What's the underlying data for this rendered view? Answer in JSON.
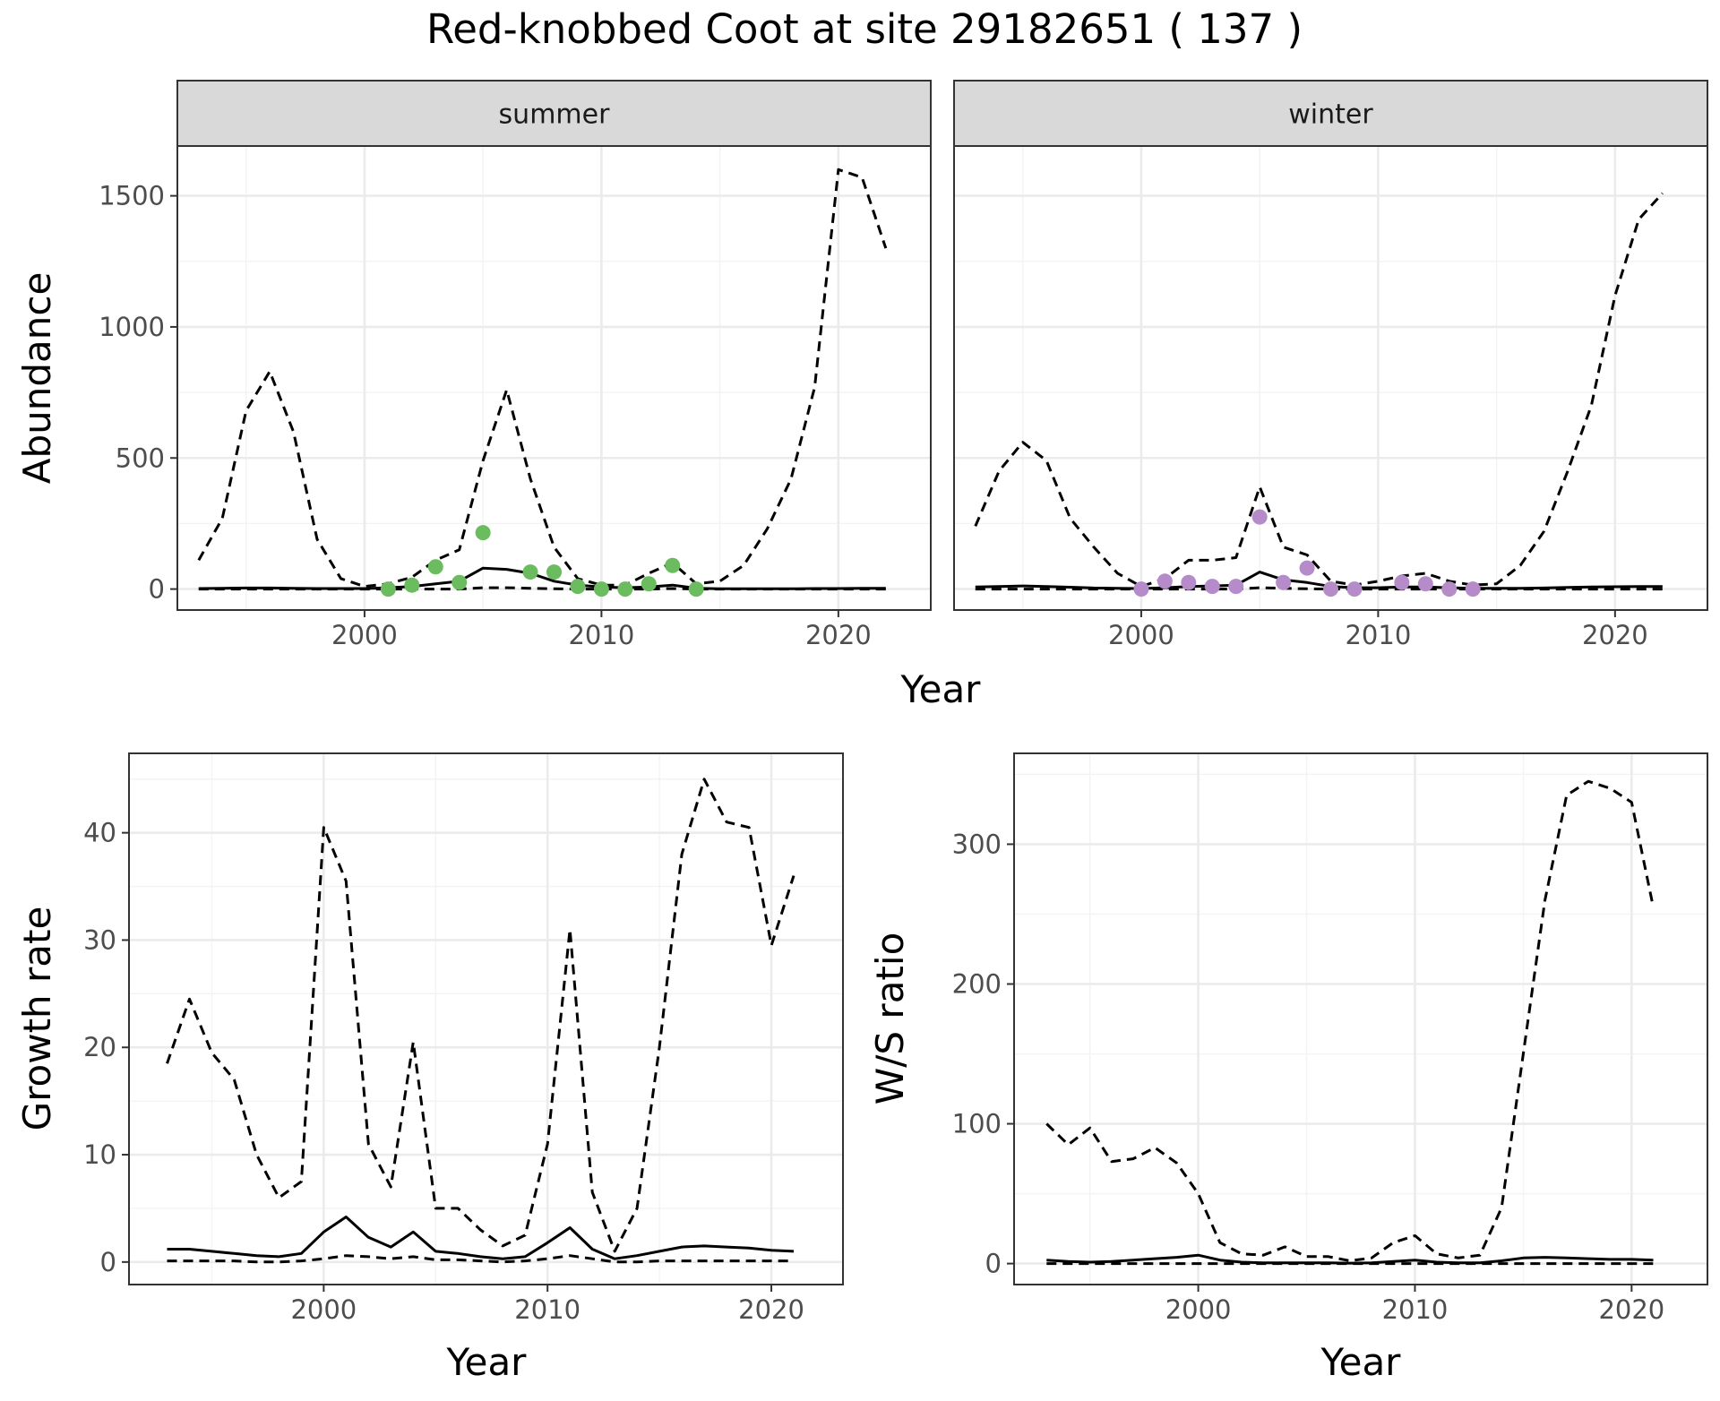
{
  "title": "Red-knobbed Coot at site 29182651 ( 137 )",
  "colors": {
    "summer_points": "#6abc5e",
    "winter_points": "#b58bc9",
    "line": "#000000",
    "grid_major": "#ebebeb",
    "grid_minor": "#f3f3f3",
    "strip_fill": "#d9d9d9"
  },
  "chart_data": [
    {
      "type": "line",
      "panel": "abundance",
      "facet_labels": [
        "summer",
        "winter"
      ],
      "xlabel": "Year",
      "ylabel": "Abundance",
      "xlim": [
        1992.1,
        2023.9
      ],
      "ylim": [
        -80,
        1690
      ],
      "x_ticks": [
        2000,
        2010,
        2020
      ],
      "y_ticks": [
        0,
        500,
        1000,
        1500
      ],
      "facets": [
        {
          "label": "summer",
          "x": [
            1993,
            1994,
            1995,
            1996,
            1997,
            1998,
            1999,
            2000,
            2001,
            2002,
            2003,
            2004,
            2005,
            2006,
            2007,
            2008,
            2009,
            2010,
            2011,
            2012,
            2013,
            2014,
            2015,
            2016,
            2017,
            2018,
            2019,
            2020,
            2021,
            2022
          ],
          "lower": [
            0,
            0,
            0,
            0,
            0,
            0,
            0,
            0,
            0,
            0,
            0,
            0,
            5,
            5,
            3,
            1,
            0,
            0,
            0,
            0,
            2,
            0,
            0,
            0,
            0,
            0,
            0,
            0,
            0,
            0
          ],
          "mean": [
            2,
            3,
            4,
            4,
            3,
            2,
            2,
            2,
            5,
            10,
            20,
            30,
            80,
            75,
            60,
            30,
            15,
            8,
            5,
            8,
            15,
            3,
            1,
            1,
            1,
            1,
            2,
            2,
            3,
            3
          ],
          "upper": [
            110,
            270,
            680,
            830,
            600,
            190,
            40,
            10,
            20,
            45,
            110,
            150,
            490,
            760,
            420,
            160,
            40,
            15,
            15,
            60,
            100,
            20,
            30,
            90,
            230,
            420,
            770,
            1600,
            1570,
            1300
          ],
          "obs_x": [
            2001,
            2002,
            2003,
            2004,
            2005,
            2007,
            2008,
            2009,
            2010,
            2011,
            2012,
            2013,
            2014
          ],
          "obs_y": [
            0,
            15,
            85,
            25,
            215,
            65,
            65,
            10,
            0,
            0,
            20,
            90,
            0
          ]
        },
        {
          "label": "winter",
          "x": [
            1993,
            1994,
            1995,
            1996,
            1997,
            1998,
            1999,
            2000,
            2001,
            2002,
            2003,
            2004,
            2005,
            2006,
            2007,
            2008,
            2009,
            2010,
            2011,
            2012,
            2013,
            2014,
            2015,
            2016,
            2017,
            2018,
            2019,
            2020,
            2021,
            2022
          ],
          "lower": [
            0,
            0,
            0,
            0,
            0,
            0,
            0,
            0,
            0,
            0,
            0,
            0,
            5,
            3,
            1,
            0,
            0,
            0,
            0,
            0,
            0,
            0,
            0,
            0,
            0,
            0,
            0,
            0,
            0,
            0
          ],
          "mean": [
            8,
            10,
            12,
            10,
            7,
            4,
            3,
            2,
            5,
            10,
            12,
            15,
            65,
            35,
            25,
            10,
            5,
            5,
            8,
            8,
            5,
            3,
            3,
            3,
            4,
            6,
            8,
            9,
            10,
            10
          ],
          "upper": [
            240,
            450,
            560,
            490,
            270,
            160,
            60,
            10,
            40,
            110,
            110,
            120,
            390,
            160,
            130,
            30,
            15,
            30,
            50,
            60,
            30,
            15,
            20,
            90,
            220,
            450,
            700,
            1120,
            1410,
            1510
          ],
          "obs_x": [
            2000,
            2001,
            2002,
            2003,
            2004,
            2005,
            2006,
            2007,
            2008,
            2009,
            2011,
            2012,
            2013,
            2014
          ],
          "obs_y": [
            0,
            30,
            25,
            10,
            10,
            275,
            25,
            80,
            0,
            0,
            25,
            20,
            0,
            0
          ]
        }
      ]
    },
    {
      "type": "line",
      "panel": "growth",
      "xlabel": "Year",
      "ylabel": "Growth rate",
      "xlim": [
        1991.3,
        2023.2
      ],
      "ylim": [
        -2.1,
        47.4
      ],
      "x_ticks": [
        2000,
        2010,
        2020
      ],
      "y_ticks": [
        0,
        10,
        20,
        30,
        40
      ],
      "x": [
        1993,
        1994,
        1995,
        1996,
        1997,
        1998,
        1999,
        2000,
        2001,
        2002,
        2003,
        2004,
        2005,
        2006,
        2007,
        2008,
        2009,
        2010,
        2011,
        2012,
        2013,
        2014,
        2015,
        2016,
        2017,
        2018,
        2019,
        2020,
        2021
      ],
      "lower": [
        0.1,
        0.1,
        0.1,
        0.1,
        0.0,
        0.0,
        0.1,
        0.3,
        0.6,
        0.5,
        0.3,
        0.5,
        0.2,
        0.2,
        0.1,
        0.0,
        0.1,
        0.3,
        0.6,
        0.3,
        0.0,
        0.0,
        0.1,
        0.1,
        0.1,
        0.1,
        0.1,
        0.1,
        0.1
      ],
      "mean": [
        1.2,
        1.2,
        1.0,
        0.8,
        0.6,
        0.5,
        0.8,
        2.8,
        4.2,
        2.3,
        1.4,
        2.8,
        1.0,
        0.8,
        0.5,
        0.3,
        0.5,
        1.8,
        3.2,
        1.2,
        0.3,
        0.6,
        1.0,
        1.4,
        1.5,
        1.4,
        1.3,
        1.1,
        1.0
      ],
      "upper": [
        18.5,
        24.5,
        19.5,
        17,
        10,
        6,
        7.5,
        40.5,
        35.5,
        11,
        7,
        20.5,
        5,
        5,
        3,
        1.5,
        2.5,
        11,
        31,
        6.5,
        1,
        5,
        20,
        38,
        45,
        41,
        40.5,
        29.5,
        36
      ]
    },
    {
      "type": "line",
      "panel": "ws_ratio",
      "xlabel": "Year",
      "ylabel": "W/S ratio",
      "xlim": [
        1991.5,
        2023.5
      ],
      "ylim": [
        -15,
        365
      ],
      "x_ticks": [
        2000,
        2010,
        2020
      ],
      "y_ticks": [
        0,
        100,
        200,
        300
      ],
      "x": [
        1993,
        1994,
        1995,
        1996,
        1997,
        1998,
        1999,
        2000,
        2001,
        2002,
        2003,
        2004,
        2005,
        2006,
        2007,
        2008,
        2009,
        2010,
        2011,
        2012,
        2013,
        2014,
        2015,
        2016,
        2017,
        2018,
        2019,
        2020,
        2021
      ],
      "lower": [
        0,
        0,
        0,
        0,
        0,
        0,
        0,
        0,
        0,
        0,
        0,
        0,
        0,
        0,
        0,
        0,
        0,
        0,
        0,
        0,
        0,
        0,
        0,
        0,
        0,
        0,
        0,
        0,
        0
      ],
      "mean": [
        2.5,
        1.5,
        1,
        1.5,
        2.5,
        3.5,
        4.5,
        6,
        2.5,
        1,
        0.5,
        0.5,
        0.5,
        0.5,
        0.3,
        0.5,
        1.5,
        2.5,
        1,
        0.5,
        0.5,
        2,
        4,
        4.5,
        4,
        3.5,
        3,
        3,
        2.5
      ],
      "upper": [
        100,
        85,
        97,
        73,
        75,
        83,
        72,
        50,
        15,
        7,
        6,
        12,
        5,
        5,
        2,
        4,
        15,
        20,
        7,
        4,
        6,
        40,
        150,
        260,
        335,
        345,
        340,
        330,
        255
      ]
    }
  ]
}
